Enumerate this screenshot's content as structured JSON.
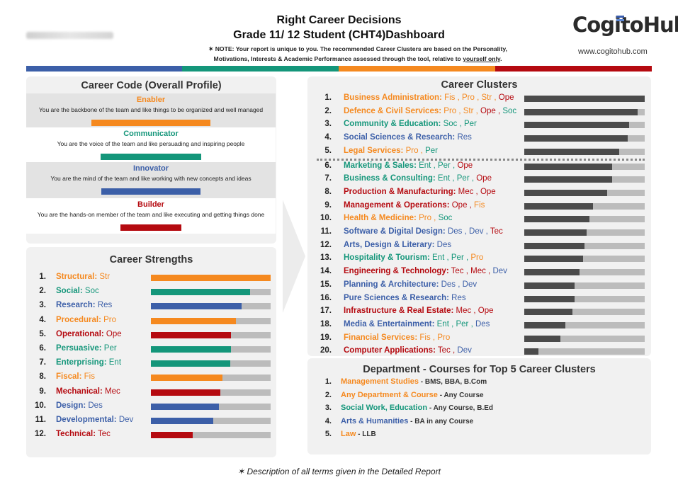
{
  "header": {
    "title": "Right Career Decisions",
    "subtitle": "Grade 11/ 12 Student (CHT4)Dashboard",
    "note_line1": "✶ NOTE: Your report is unique to you. The recommended Career Clusters are based on the Personality,",
    "note_line2_a": "Motivations, Interests & Academic Performance assessed through the tool, relative to ",
    "note_line2_u": "yourself only",
    "note_line2_b": ".",
    "logo": "CogitoHub",
    "website": "www.cogitohub.com"
  },
  "colors": {
    "orange": "#f5891f",
    "green": "#14967a",
    "blue": "#3c5fa8",
    "red": "#b50a10",
    "grey": "#bcbcbc",
    "dark": "#4b4b4b"
  },
  "career_code": {
    "title": "Career Code (Overall Profile)",
    "items": [
      {
        "name": "Enabler",
        "desc": "You are the backbone of the team and like things to be organized and well managed",
        "color": "orange"
      },
      {
        "name": "Communicator",
        "desc": "You are the voice of the team and like persuading and inspiring people",
        "color": "green"
      },
      {
        "name": "Innovator",
        "desc": "You are the mind of the team and like working with new concepts and ideas",
        "color": "blue"
      },
      {
        "name": "Builder",
        "desc": "You are the hands-on member of the team and like executing and getting things done",
        "color": "red"
      }
    ]
  },
  "career_strengths": {
    "title": "Career Strengths",
    "items": [
      {
        "num": "1.",
        "name": "Structural:",
        "abbr": "Str",
        "color": "orange",
        "score": 1.0
      },
      {
        "num": "2.",
        "name": "Social:",
        "abbr": "Soc",
        "color": "green",
        "score": 0.83
      },
      {
        "num": "3.",
        "name": "Research:",
        "abbr": "Res",
        "color": "blue",
        "score": 0.76
      },
      {
        "num": "4.",
        "name": "Procedural:",
        "abbr": "Pro",
        "color": "orange",
        "score": 0.71
      },
      {
        "num": "5.",
        "name": "Operational:",
        "abbr": "Ope",
        "color": "red",
        "score": 0.67
      },
      {
        "num": "6.",
        "name": "Persuasive:",
        "abbr": "Per",
        "color": "green",
        "score": 0.67
      },
      {
        "num": "7.",
        "name": "Enterprising:",
        "abbr": "Ent",
        "color": "green",
        "score": 0.66
      },
      {
        "num": "8.",
        "name": "Fiscal:",
        "abbr": "Fis",
        "color": "orange",
        "score": 0.6
      },
      {
        "num": "9.",
        "name": "Mechanical:",
        "abbr": "Mec",
        "color": "red",
        "score": 0.58
      },
      {
        "num": "10.",
        "name": "Design:",
        "abbr": "Des",
        "color": "blue",
        "score": 0.57
      },
      {
        "num": "11.",
        "name": "Developmental:",
        "abbr": "Dev",
        "color": "blue",
        "score": 0.52
      },
      {
        "num": "12.",
        "name": "Technical:",
        "abbr": "Tec",
        "color": "red",
        "score": 0.35
      }
    ]
  },
  "career_clusters": {
    "title": "Career Clusters",
    "items": [
      {
        "num": "1.",
        "name": "Business Administration:",
        "color": "orange",
        "tags": [
          {
            "t": "Fis",
            "c": "orange"
          },
          {
            "t": "Pro",
            "c": "orange"
          },
          {
            "t": "Str",
            "c": "orange"
          },
          {
            "t": "Ope",
            "c": "red"
          }
        ],
        "score": 1.0
      },
      {
        "num": "2.",
        "name": "Defence & Civil Services:",
        "color": "orange",
        "tags": [
          {
            "t": "Pro",
            "c": "orange"
          },
          {
            "t": "Str",
            "c": "orange"
          },
          {
            "t": "Ope",
            "c": "red"
          },
          {
            "t": "Soc",
            "c": "green"
          }
        ],
        "score": 0.94
      },
      {
        "num": "3.",
        "name": "Community & Education:",
        "color": "green",
        "tags": [
          {
            "t": "Soc",
            "c": "green"
          },
          {
            "t": "Per",
            "c": "green"
          }
        ],
        "score": 0.87
      },
      {
        "num": "4.",
        "name": "Social Sciences & Research:",
        "color": "blue",
        "tags": [
          {
            "t": "Res",
            "c": "blue"
          }
        ],
        "score": 0.86
      },
      {
        "num": "5.",
        "name": "Legal Services:",
        "color": "orange",
        "tags": [
          {
            "t": "Pro",
            "c": "orange"
          },
          {
            "t": "Per",
            "c": "green"
          }
        ],
        "score": 0.79
      },
      {
        "num": "6.",
        "name": "Marketing & Sales:",
        "color": "green",
        "tags": [
          {
            "t": "Ent",
            "c": "green"
          },
          {
            "t": "Per",
            "c": "green"
          },
          {
            "t": "Ope",
            "c": "red"
          }
        ],
        "score": 0.73
      },
      {
        "num": "7.",
        "name": "Business & Consulting:",
        "color": "green",
        "tags": [
          {
            "t": "Ent",
            "c": "green"
          },
          {
            "t": "Per",
            "c": "green"
          },
          {
            "t": "Ope",
            "c": "red"
          }
        ],
        "score": 0.73
      },
      {
        "num": "8.",
        "name": "Production & Manufacturing:",
        "color": "red",
        "tags": [
          {
            "t": "Mec",
            "c": "red"
          },
          {
            "t": "Ope",
            "c": "red"
          }
        ],
        "score": 0.69
      },
      {
        "num": "9.",
        "name": "Management & Operations:",
        "color": "red",
        "tags": [
          {
            "t": "Ope",
            "c": "red"
          },
          {
            "t": "Fis",
            "c": "orange"
          }
        ],
        "score": 0.57
      },
      {
        "num": "10.",
        "name": "Health & Medicine:",
        "color": "orange",
        "tags": [
          {
            "t": "Pro",
            "c": "orange"
          },
          {
            "t": "Soc",
            "c": "green"
          }
        ],
        "score": 0.54
      },
      {
        "num": "11.",
        "name": "Software & Digital Design:",
        "color": "blue",
        "tags": [
          {
            "t": "Des",
            "c": "blue"
          },
          {
            "t": "Dev",
            "c": "blue"
          },
          {
            "t": "Tec",
            "c": "red"
          }
        ],
        "score": 0.52
      },
      {
        "num": "12.",
        "name": "Arts, Design & Literary:",
        "color": "blue",
        "tags": [
          {
            "t": "Des",
            "c": "blue"
          }
        ],
        "score": 0.5
      },
      {
        "num": "13.",
        "name": "Hospitality & Tourism:",
        "color": "green",
        "tags": [
          {
            "t": "Ent",
            "c": "green"
          },
          {
            "t": "Per",
            "c": "green"
          },
          {
            "t": "Pro",
            "c": "orange"
          }
        ],
        "score": 0.49
      },
      {
        "num": "14.",
        "name": "Engineering & Technology:",
        "color": "red",
        "tags": [
          {
            "t": "Tec",
            "c": "red"
          },
          {
            "t": "Mec",
            "c": "red"
          },
          {
            "t": "Dev",
            "c": "blue"
          }
        ],
        "score": 0.46
      },
      {
        "num": "15.",
        "name": "Planning & Architecture:",
        "color": "blue",
        "tags": [
          {
            "t": "Des",
            "c": "blue"
          },
          {
            "t": "Dev",
            "c": "blue"
          }
        ],
        "score": 0.42
      },
      {
        "num": "16.",
        "name": "Pure Sciences & Research:",
        "color": "blue",
        "tags": [
          {
            "t": "Res",
            "c": "blue"
          }
        ],
        "score": 0.42
      },
      {
        "num": "17.",
        "name": "Infrastructure & Real Estate:",
        "color": "red",
        "tags": [
          {
            "t": "Mec",
            "c": "red"
          },
          {
            "t": "Ope",
            "c": "red"
          }
        ],
        "score": 0.4
      },
      {
        "num": "18.",
        "name": "Media & Entertainment:",
        "color": "blue",
        "tags": [
          {
            "t": "Ent",
            "c": "green"
          },
          {
            "t": "Per",
            "c": "green"
          },
          {
            "t": "Des",
            "c": "blue"
          }
        ],
        "score": 0.34
      },
      {
        "num": "19.",
        "name": "Financial Services:",
        "color": "orange",
        "tags": [
          {
            "t": "Fis",
            "c": "orange"
          },
          {
            "t": "Pro",
            "c": "orange"
          }
        ],
        "score": 0.3
      },
      {
        "num": "20.",
        "name": "Computer Applications:",
        "color": "red",
        "tags": [
          {
            "t": "Tec",
            "c": "red"
          },
          {
            "t": "Dev",
            "c": "blue"
          }
        ],
        "score": 0.12
      }
    ]
  },
  "courses": {
    "title": "Department - Courses for Top 5 Career Clusters",
    "items": [
      {
        "num": "1.",
        "name": "Management Studies",
        "color": "orange",
        "courses": "BMS, BBA, B.Com"
      },
      {
        "num": "2.",
        "name": "Any Department & Course",
        "color": "orange",
        "courses": "Any Course"
      },
      {
        "num": "3.",
        "name": "Social Work, Education",
        "color": "green",
        "courses": "Any Course, B.Ed"
      },
      {
        "num": "4.",
        "name": "Arts & Humanities",
        "color": "blue",
        "courses": "BA in any Course"
      },
      {
        "num": "5.",
        "name": "Law",
        "color": "orange",
        "courses": "LLB"
      }
    ]
  },
  "footer": "✶ Description of all terms given in the Detailed Report"
}
